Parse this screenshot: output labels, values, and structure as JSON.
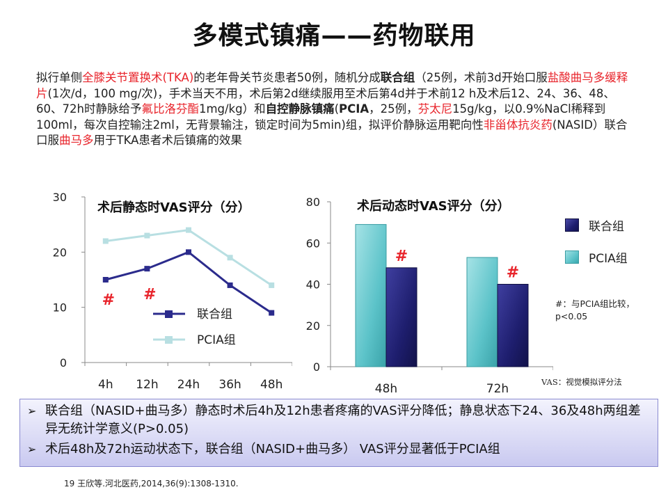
{
  "title": "多模式镇痛——药物联用",
  "intro": {
    "p1": "拟行单侧",
    "r1": "全膝关节置换术(TKA)",
    "p2": "的老年骨关节炎患者50例，随机分成",
    "b1": "联合组",
    "p3": "（25例，术前3d开始口服",
    "r2": "盐酸曲马多缓释片",
    "p4": "(1次/d，100 mg/次)，手术当天不用，术后第2d继续服用至术后第4d并于术前12 h及术后12、24、36、48、60、72h时静脉给予",
    "r3": "氟比洛芬酯",
    "p5": "1mg/kg）和",
    "b2": "自控静脉镇痛",
    "p6": "(",
    "b3": "PCIA",
    "p7": "，25例，",
    "r4": "芬太尼",
    "p8": "15g/kg，以0.9%NaCl稀释到100ml，每次自控输注2ml，无背景输注，锁定时间为5min)组，拟评价静脉运用靶向性",
    "r5": "非甾体抗炎药",
    "p9": "(NASID）联合口服",
    "r6": "曲马多",
    "p10": "用于TKA患者术后镇痛的效果"
  },
  "chart_data": [
    {
      "type": "line",
      "title": "术后静态时VAS评分（分）",
      "categories": [
        "4h",
        "12h",
        "24h",
        "36h",
        "48h"
      ],
      "series": [
        {
          "name": "联合组",
          "values": [
            15,
            17,
            20,
            14,
            9
          ],
          "color": "#2b2b8c"
        },
        {
          "name": "PCIA组",
          "values": [
            22,
            23,
            24,
            19,
            14
          ],
          "color": "#b8dfe2"
        }
      ],
      "ylim": [
        0,
        30
      ],
      "yticks": [
        0,
        10,
        20,
        30
      ],
      "annotations": [
        {
          "text": "#",
          "category": "4h",
          "value": 11.5
        },
        {
          "text": "#",
          "category": "12h",
          "value": 12.5
        }
      ],
      "legend": "center-bottom",
      "grid": false
    },
    {
      "type": "bar",
      "title": "术后动态时VAS评分（分）",
      "categories": [
        "48h",
        "72h"
      ],
      "series": [
        {
          "name": "PCIA组",
          "values": [
            69,
            53
          ],
          "color": "#5cc3c9"
        },
        {
          "name": "联合组",
          "values": [
            48,
            40
          ],
          "color": "#1e1e6e"
        }
      ],
      "ylim": [
        0,
        80
      ],
      "yticks": [
        0,
        20,
        40,
        60,
        80
      ],
      "annotations": [
        {
          "text": "#",
          "category": "48h",
          "series": "联合组"
        },
        {
          "text": "#",
          "category": "72h",
          "series": "联合组"
        }
      ],
      "legend": "right",
      "grid": false
    }
  ],
  "note": {
    "line1": "#：与PCIA组比较，",
    "line2": "p<0.05"
  },
  "vas_definition": "VAS：视觉模拟评分法",
  "summary": [
    "联合组（NASID+曲马多）静态时术后4h及12h患者疼痛的VAS评分降低；静息状态下24、36及48h两组差异无统计学意义(P>0.05)",
    "术后48h及72h运动状态下，联合组（NASID+曲马多） VAS评分显著低于PCIA组"
  ],
  "reference": "19 王欣等.河北医药,2014,36(9):1308-1310."
}
